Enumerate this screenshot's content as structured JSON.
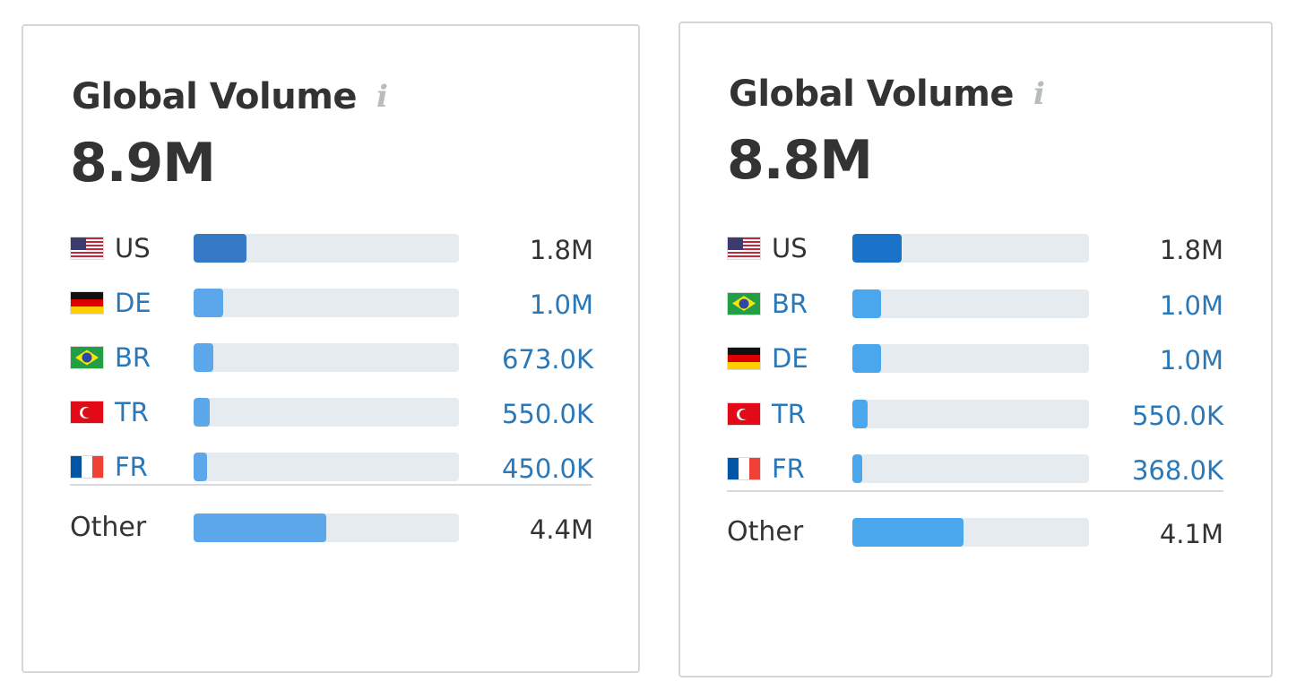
{
  "panels": [
    {
      "title": "Global Volume",
      "info_icon": "i",
      "total": "8.9M",
      "top_bar_color": "#3679c4",
      "bar_color": "#5ba7ea",
      "countries": [
        {
          "code": "US",
          "flag": "us-flag-icon",
          "value": "1.8M",
          "fraction": 0.2,
          "linked": false
        },
        {
          "code": "DE",
          "flag": "de-flag-icon",
          "value": "1.0M",
          "fraction": 0.11,
          "linked": true
        },
        {
          "code": "BR",
          "flag": "br-flag-icon",
          "value": "673.0K",
          "fraction": 0.076,
          "linked": true
        },
        {
          "code": "TR",
          "flag": "tr-flag-icon",
          "value": "550.0K",
          "fraction": 0.062,
          "linked": true
        },
        {
          "code": "FR",
          "flag": "fr-flag-icon",
          "value": "450.0K",
          "fraction": 0.05,
          "linked": true
        }
      ],
      "other": {
        "label": "Other",
        "value": "4.4M",
        "fraction": 0.5
      }
    },
    {
      "title": "Global Volume",
      "info_icon": "i",
      "total": "8.8M",
      "top_bar_color": "#1a73c8",
      "bar_color": "#4aa7ee",
      "countries": [
        {
          "code": "US",
          "flag": "us-flag-icon",
          "value": "1.8M",
          "fraction": 0.21,
          "linked": false
        },
        {
          "code": "BR",
          "flag": "br-flag-icon",
          "value": "1.0M",
          "fraction": 0.12,
          "linked": true
        },
        {
          "code": "DE",
          "flag": "de-flag-icon",
          "value": "1.0M",
          "fraction": 0.12,
          "linked": true
        },
        {
          "code": "TR",
          "flag": "tr-flag-icon",
          "value": "550.0K",
          "fraction": 0.063,
          "linked": true
        },
        {
          "code": "FR",
          "flag": "fr-flag-icon",
          "value": "368.0K",
          "fraction": 0.042,
          "linked": true
        }
      ],
      "other": {
        "label": "Other",
        "value": "4.1M",
        "fraction": 0.47
      }
    }
  ]
}
